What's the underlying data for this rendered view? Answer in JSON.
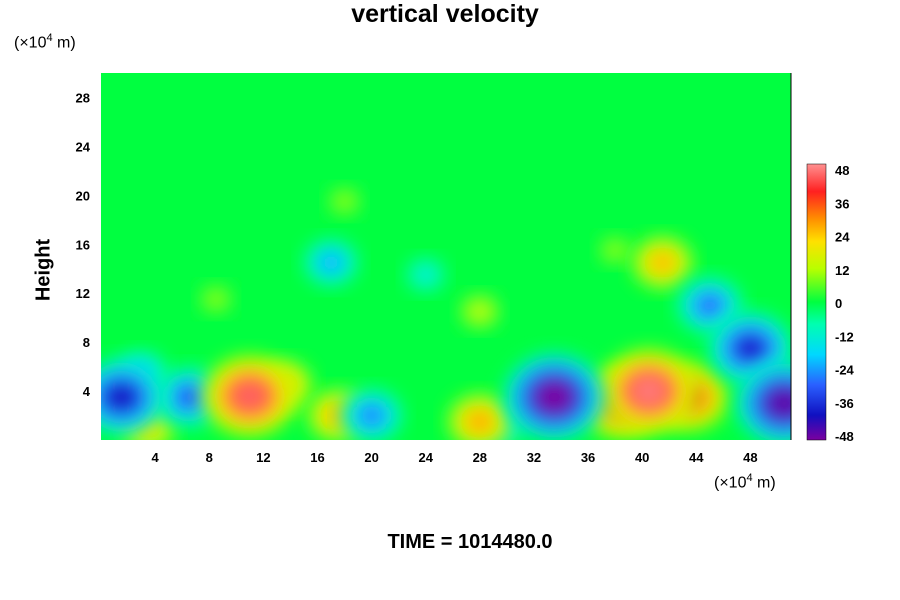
{
  "chart_data": {
    "type": "heatmap",
    "title": "vertical velocity",
    "ylabel": "Height",
    "y_unit_prefix": "(×10",
    "y_unit_exp": "4",
    "y_unit_suffix": " m)",
    "x_unit_prefix": "(×10",
    "x_unit_exp": "4",
    "x_unit_suffix": " m)",
    "xlim": [
      0,
      51
    ],
    "ylim": [
      0,
      30
    ],
    "x_ticks": [
      4,
      8,
      12,
      16,
      20,
      24,
      28,
      32,
      36,
      40,
      44,
      48
    ],
    "x_tick_labels": [
      "4",
      "8",
      "12",
      "16",
      "20",
      "24",
      "28",
      "32",
      "36",
      "40",
      "44",
      "48"
    ],
    "y_ticks": [
      4,
      8,
      12,
      16,
      20,
      24,
      28
    ],
    "y_tick_labels": [
      "4",
      "8",
      "12",
      "16",
      "20",
      "24",
      "28"
    ],
    "colorbar": {
      "range": [
        -48,
        48
      ],
      "ticks": [
        48,
        36,
        24,
        12,
        0,
        -12,
        -24,
        -36,
        -48
      ],
      "tick_labels": [
        "48",
        "36",
        "24",
        "12",
        "0",
        "-12",
        "-24",
        "-36",
        "-48"
      ]
    },
    "features": [
      {
        "x": 11.0,
        "y": 3.6,
        "value": 44
      },
      {
        "x": 13.5,
        "y": 4.5,
        "value": 24
      },
      {
        "x": 17.5,
        "y": 2.0,
        "value": 26
      },
      {
        "x": 40.5,
        "y": 4.0,
        "value": 46
      },
      {
        "x": 43.5,
        "y": 3.5,
        "value": 36
      },
      {
        "x": 38.5,
        "y": 3.0,
        "value": 38
      },
      {
        "x": 33.5,
        "y": 3.5,
        "value": -48
      },
      {
        "x": 50.5,
        "y": 3.0,
        "value": -46
      },
      {
        "x": 1.5,
        "y": 3.5,
        "value": -40
      },
      {
        "x": 3.0,
        "y": 5.5,
        "value": -20
      },
      {
        "x": 6.5,
        "y": 3.5,
        "value": -30
      },
      {
        "x": 48.0,
        "y": 7.5,
        "value": -38
      },
      {
        "x": 28.0,
        "y": 1.5,
        "value": 28
      },
      {
        "x": 3.5,
        "y": 1.0,
        "value": 22
      },
      {
        "x": 20.0,
        "y": 2.0,
        "value": -26
      },
      {
        "x": 29.5,
        "y": 1.0,
        "value": -18
      },
      {
        "x": 8.5,
        "y": 11.5,
        "value": 10
      },
      {
        "x": 38.0,
        "y": 15.5,
        "value": 10
      },
      {
        "x": 41.5,
        "y": 14.5,
        "value": 26
      },
      {
        "x": 17.0,
        "y": 14.5,
        "value": -22
      },
      {
        "x": 24.0,
        "y": 13.5,
        "value": -14
      },
      {
        "x": 28.0,
        "y": 10.5,
        "value": 14
      },
      {
        "x": 18.0,
        "y": 19.5,
        "value": 10
      },
      {
        "x": 45.0,
        "y": 11.0,
        "value": -28
      }
    ]
  },
  "footer": {
    "time_label": "TIME = 1014480.0"
  }
}
